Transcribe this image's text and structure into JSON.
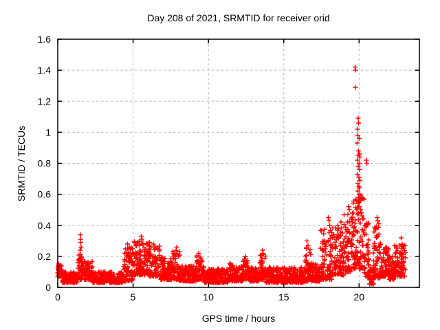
{
  "window": {
    "background": "#ffffff",
    "foreground": "#000000"
  },
  "chart_data": {
    "type": "scatter",
    "title": "Day 208 of 2021, SRMTID for receiver orid",
    "xlabel": "GPS time / hours",
    "ylabel": "SRMTID / TECUs",
    "xlim": [
      0,
      24
    ],
    "ylim": [
      0,
      1.6
    ],
    "xticks": [
      0,
      5,
      10,
      15,
      20
    ],
    "xtick_labels": [
      "0",
      "5",
      "10",
      "15",
      "20"
    ],
    "yticks": [
      0,
      0.2,
      0.4,
      0.6,
      0.8,
      1,
      1.2,
      1.4,
      1.6
    ],
    "ytick_labels": [
      "0",
      "0.2",
      "0.4",
      "0.6",
      "0.8",
      "1",
      "1.2",
      "1.4",
      "1.6"
    ],
    "grid": true,
    "grid_style": "dashed",
    "grid_color": "#b5b5b5",
    "frame_color": "#000000",
    "legend": "none",
    "marker": {
      "shape": "plus",
      "color": "#ff0000",
      "size": 7,
      "stroke_width": 1.4
    },
    "series": [
      {
        "name": "SRMTID",
        "description": "Dense 30s-cadence scatter; band_segments give [t_start_h, t_end_h, y_min, y_max, n_points] envelopes read from the plot; peak_points are individually visible [hour, TECU] markers.",
        "band_segments": [
          [
            0.0,
            0.3,
            0.07,
            0.16,
            35
          ],
          [
            0.3,
            1.3,
            0.03,
            0.1,
            115
          ],
          [
            1.3,
            1.7,
            0.05,
            0.22,
            48
          ],
          [
            1.7,
            2.3,
            0.05,
            0.17,
            70
          ],
          [
            2.3,
            4.3,
            0.03,
            0.1,
            230
          ],
          [
            4.3,
            5.0,
            0.04,
            0.26,
            85
          ],
          [
            5.0,
            6.0,
            0.08,
            0.3,
            120
          ],
          [
            6.0,
            6.8,
            0.07,
            0.27,
            95
          ],
          [
            6.8,
            7.6,
            0.05,
            0.2,
            95
          ],
          [
            7.6,
            8.1,
            0.05,
            0.24,
            60
          ],
          [
            8.1,
            9.2,
            0.04,
            0.14,
            125
          ],
          [
            9.2,
            9.7,
            0.05,
            0.21,
            58
          ],
          [
            9.7,
            11.3,
            0.03,
            0.12,
            185
          ],
          [
            11.3,
            11.8,
            0.04,
            0.16,
            58
          ],
          [
            11.8,
            12.3,
            0.04,
            0.14,
            58
          ],
          [
            12.3,
            12.7,
            0.05,
            0.19,
            46
          ],
          [
            12.7,
            13.4,
            0.04,
            0.13,
            80
          ],
          [
            13.4,
            13.8,
            0.05,
            0.22,
            46
          ],
          [
            13.8,
            16.4,
            0.03,
            0.13,
            300
          ],
          [
            16.4,
            16.8,
            0.04,
            0.26,
            46
          ],
          [
            16.8,
            17.4,
            0.04,
            0.16,
            70
          ],
          [
            17.4,
            18.2,
            0.05,
            0.38,
            92
          ],
          [
            18.2,
            19.0,
            0.08,
            0.4,
            92
          ],
          [
            19.0,
            19.6,
            0.1,
            0.48,
            70
          ],
          [
            19.6,
            20.35,
            0.12,
            0.6,
            95
          ],
          [
            20.35,
            20.65,
            0.06,
            0.42,
            40
          ],
          [
            20.65,
            20.95,
            0.02,
            0.15,
            35
          ],
          [
            20.95,
            21.45,
            0.06,
            0.4,
            60
          ],
          [
            21.45,
            21.95,
            0.07,
            0.28,
            60
          ],
          [
            21.95,
            22.35,
            0.05,
            0.2,
            46
          ],
          [
            22.35,
            23.1,
            0.07,
            0.28,
            90
          ]
        ],
        "peak_points": [
          [
            0.05,
            0.15
          ],
          [
            0.1,
            0.13
          ],
          [
            1.5,
            0.34
          ],
          [
            1.52,
            0.31
          ],
          [
            1.53,
            0.29
          ],
          [
            1.55,
            0.26
          ],
          [
            1.48,
            0.24
          ],
          [
            4.62,
            0.28
          ],
          [
            5.3,
            0.29
          ],
          [
            5.55,
            0.33
          ],
          [
            5.6,
            0.31
          ],
          [
            6.1,
            0.29
          ],
          [
            6.35,
            0.28
          ],
          [
            7.9,
            0.26
          ],
          [
            9.35,
            0.22
          ],
          [
            12.45,
            0.2
          ],
          [
            13.6,
            0.24
          ],
          [
            13.63,
            0.22
          ],
          [
            16.5,
            0.25
          ],
          [
            16.55,
            0.3
          ],
          [
            16.6,
            0.27
          ],
          [
            17.95,
            0.45
          ],
          [
            18.0,
            0.43
          ],
          [
            18.05,
            0.4
          ],
          [
            18.6,
            0.4
          ],
          [
            18.8,
            0.42
          ],
          [
            19.25,
            0.47
          ],
          [
            19.3,
            0.52
          ],
          [
            19.35,
            0.5
          ],
          [
            19.74,
            1.42
          ],
          [
            19.76,
            1.4
          ],
          [
            19.75,
            1.29
          ],
          [
            19.95,
            1.09
          ],
          [
            19.97,
            1.06
          ],
          [
            19.9,
            1.02
          ],
          [
            19.92,
            0.98
          ],
          [
            20.0,
            0.96
          ],
          [
            19.88,
            0.93
          ],
          [
            19.96,
            0.88
          ],
          [
            20.02,
            0.86
          ],
          [
            19.93,
            0.85
          ],
          [
            20.05,
            0.84
          ],
          [
            19.9,
            0.82
          ],
          [
            20.0,
            0.8
          ],
          [
            20.48,
            0.82
          ],
          [
            20.52,
            0.8
          ],
          [
            19.94,
            0.78
          ],
          [
            20.03,
            0.76
          ],
          [
            19.89,
            0.73
          ],
          [
            19.98,
            0.71
          ],
          [
            20.06,
            0.69
          ],
          [
            19.92,
            0.67
          ],
          [
            19.99,
            0.65
          ],
          [
            20.04,
            0.64
          ],
          [
            19.91,
            0.62
          ],
          [
            20.01,
            0.6
          ],
          [
            19.96,
            0.58
          ],
          [
            20.07,
            0.56
          ],
          [
            19.93,
            0.54
          ],
          [
            20.0,
            0.52
          ],
          [
            20.1,
            0.5
          ],
          [
            20.15,
            0.48
          ],
          [
            20.2,
            0.46
          ],
          [
            20.3,
            0.44
          ],
          [
            20.42,
            0.4
          ],
          [
            21.15,
            0.39
          ],
          [
            21.2,
            0.45
          ],
          [
            21.25,
            0.43
          ],
          [
            21.3,
            0.41
          ],
          [
            22.8,
            0.32
          ],
          [
            22.85,
            0.28
          ]
        ]
      }
    ]
  }
}
